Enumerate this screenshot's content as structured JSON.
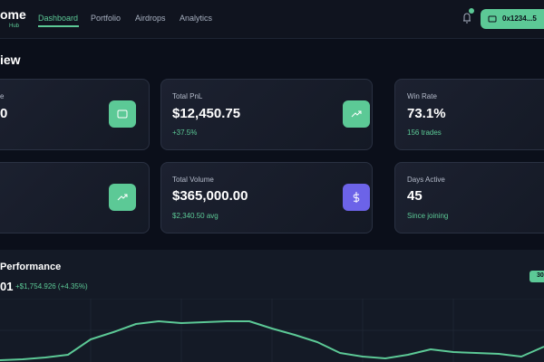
{
  "header": {
    "logo": "ome",
    "logo_sub": "Hub",
    "nav": [
      "Dashboard",
      "Portfolio",
      "Airdrops",
      "Analytics"
    ],
    "wallet": "0x1234...5"
  },
  "overview": {
    "title": "iew",
    "cards": [
      {
        "label": "e",
        "value": "0",
        "sub": null
      },
      {
        "label": "Total PnL",
        "value": "$12,450.75",
        "sub": "+37.5%"
      },
      {
        "label": "Win Rate",
        "value": "73.1%",
        "sub": "156 trades"
      },
      {
        "label": null,
        "value": null,
        "sub": null
      },
      {
        "label": "Total Volume",
        "value": "$365,000.00",
        "sub": "$2,340.50 avg"
      },
      {
        "label": "Days Active",
        "value": "45",
        "sub": "Since joining"
      }
    ]
  },
  "performance": {
    "title": "Performance",
    "value": "01",
    "change": "+$1,754.926 (+4.35%)",
    "range_button": "30",
    "chart_data": {
      "type": "line",
      "color": "#5cc996",
      "ylim": [
        0,
        50
      ],
      "values": [
        2,
        3,
        5,
        8,
        25,
        33,
        42,
        45,
        43,
        44,
        45,
        45,
        37,
        30,
        22,
        10,
        6,
        4,
        8,
        14,
        11,
        10,
        9,
        6,
        17
      ]
    }
  }
}
